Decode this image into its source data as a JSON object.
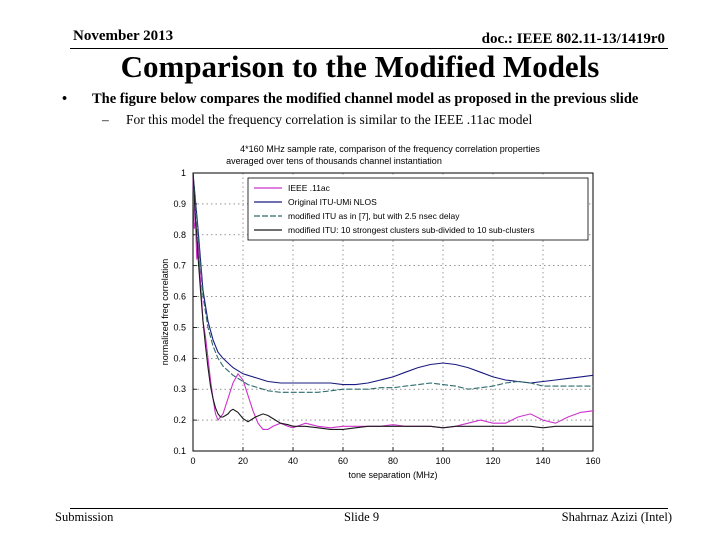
{
  "header": {
    "date": "November 2013",
    "doc": "doc.: IEEE 802.11-13/1419r0"
  },
  "slide": {
    "title": "Comparison to the Modified Models",
    "bullet": "The figure below compares the modified channel model as proposed in the previous slide",
    "sub_bullet": "For this model the frequency correlation is similar to the IEEE .11ac model"
  },
  "footer": {
    "left": "Submission",
    "center": "Slide 9",
    "right": "Shahrnaz Azizi (Intel)"
  },
  "chart_data": {
    "type": "line",
    "title": "4*160 MHz sample rate, comparison of the frequency correlation properties",
    "subtitle": "averaged over tens of thousands channel instantiation",
    "xlabel": "tone separation (MHz)",
    "ylabel": "normalized freq correlation",
    "xlim": [
      0,
      160
    ],
    "ylim": [
      0.1,
      1
    ],
    "xticks": [
      0,
      20,
      40,
      60,
      80,
      100,
      120,
      140,
      160
    ],
    "yticks": [
      0.1,
      0.2,
      0.3,
      0.4,
      0.5,
      0.6,
      0.7,
      0.8,
      0.9,
      1
    ],
    "xtick_labels": [
      "0",
      "20",
      "40",
      "60",
      "80",
      "100",
      "120",
      "140",
      "160"
    ],
    "ytick_labels": [
      "0.1",
      "0.2",
      "0.3",
      "0.4",
      "0.5",
      "0.6",
      "0.7",
      "0.8",
      "0.9",
      "1"
    ],
    "grid": true,
    "legend_position": "top-right",
    "series": [
      {
        "name": "IEEE .11ac",
        "color": "#cc33cc",
        "x": [
          0,
          0.5,
          1,
          1.5,
          2,
          3,
          4,
          5,
          6,
          7,
          8,
          9,
          10,
          12,
          14,
          16,
          18,
          20,
          22,
          24,
          26,
          28,
          30,
          32,
          35,
          38,
          40,
          45,
          50,
          55,
          60,
          65,
          70,
          75,
          80,
          85,
          90,
          95,
          100,
          105,
          110,
          115,
          120,
          125,
          130,
          135,
          140,
          145,
          150,
          155,
          160
        ],
        "y": [
          1.0,
          0.82,
          0.84,
          0.72,
          0.78,
          0.65,
          0.52,
          0.47,
          0.4,
          0.33,
          0.27,
          0.22,
          0.2,
          0.22,
          0.27,
          0.32,
          0.35,
          0.33,
          0.28,
          0.23,
          0.19,
          0.17,
          0.17,
          0.18,
          0.19,
          0.18,
          0.175,
          0.19,
          0.18,
          0.175,
          0.18,
          0.18,
          0.18,
          0.18,
          0.185,
          0.18,
          0.18,
          0.18,
          0.175,
          0.18,
          0.19,
          0.2,
          0.19,
          0.19,
          0.21,
          0.22,
          0.2,
          0.19,
          0.21,
          0.225,
          0.23
        ]
      },
      {
        "name": "Original ITU-UMi NLOS",
        "color": "#1a1a80",
        "x": [
          0,
          2,
          4,
          6,
          8,
          10,
          12,
          14,
          16,
          18,
          20,
          22,
          24,
          26,
          28,
          30,
          35,
          40,
          45,
          50,
          55,
          60,
          65,
          70,
          75,
          80,
          85,
          90,
          95,
          100,
          105,
          110,
          115,
          120,
          125,
          130,
          135,
          140,
          145,
          150,
          155,
          160
        ],
        "y": [
          1.0,
          0.82,
          0.62,
          0.52,
          0.46,
          0.42,
          0.4,
          0.385,
          0.37,
          0.36,
          0.35,
          0.345,
          0.34,
          0.335,
          0.33,
          0.325,
          0.32,
          0.32,
          0.32,
          0.32,
          0.32,
          0.315,
          0.315,
          0.32,
          0.33,
          0.34,
          0.355,
          0.37,
          0.38,
          0.385,
          0.38,
          0.37,
          0.355,
          0.34,
          0.33,
          0.325,
          0.32,
          0.325,
          0.33,
          0.335,
          0.34,
          0.345
        ]
      },
      {
        "name": "modified ITU as in [7], but with 2.5 nsec delay",
        "color": "#2e6b6b",
        "x": [
          0,
          2,
          4,
          6,
          8,
          10,
          12,
          14,
          16,
          18,
          20,
          22,
          24,
          26,
          28,
          30,
          35,
          40,
          45,
          50,
          55,
          60,
          65,
          70,
          75,
          80,
          85,
          90,
          95,
          100,
          105,
          110,
          115,
          120,
          125,
          130,
          135,
          140,
          145,
          150,
          155,
          160
        ],
        "y": [
          1.0,
          0.8,
          0.6,
          0.5,
          0.44,
          0.4,
          0.375,
          0.36,
          0.345,
          0.335,
          0.325,
          0.315,
          0.31,
          0.305,
          0.3,
          0.295,
          0.29,
          0.29,
          0.29,
          0.29,
          0.295,
          0.3,
          0.3,
          0.3,
          0.305,
          0.305,
          0.31,
          0.315,
          0.32,
          0.315,
          0.31,
          0.3,
          0.305,
          0.31,
          0.32,
          0.325,
          0.32,
          0.31,
          0.31,
          0.31,
          0.31,
          0.31
        ]
      },
      {
        "name": "modified ITU: 10 strongest clusters sub-divided to 10 sub-clusters",
        "color": "#1a1a1a",
        "x": [
          0,
          0.5,
          1,
          1.5,
          2,
          3,
          4,
          5,
          6,
          7,
          8,
          9,
          10,
          11,
          12,
          13,
          14,
          15,
          16,
          18,
          20,
          22,
          25,
          28,
          30,
          32,
          35,
          38,
          40,
          45,
          50,
          55,
          60,
          65,
          70,
          75,
          80,
          85,
          90,
          95,
          100,
          105,
          110,
          115,
          120,
          125,
          130,
          135,
          140,
          145,
          150,
          155,
          160
        ],
        "y": [
          1.0,
          0.92,
          0.85,
          0.8,
          0.73,
          0.62,
          0.52,
          0.44,
          0.37,
          0.31,
          0.27,
          0.24,
          0.22,
          0.21,
          0.21,
          0.215,
          0.22,
          0.23,
          0.235,
          0.225,
          0.205,
          0.195,
          0.21,
          0.22,
          0.215,
          0.205,
          0.19,
          0.185,
          0.18,
          0.18,
          0.175,
          0.17,
          0.17,
          0.175,
          0.18,
          0.18,
          0.18,
          0.18,
          0.18,
          0.18,
          0.175,
          0.18,
          0.18,
          0.18,
          0.18,
          0.18,
          0.18,
          0.18,
          0.175,
          0.18,
          0.18,
          0.18,
          0.18
        ]
      }
    ]
  }
}
